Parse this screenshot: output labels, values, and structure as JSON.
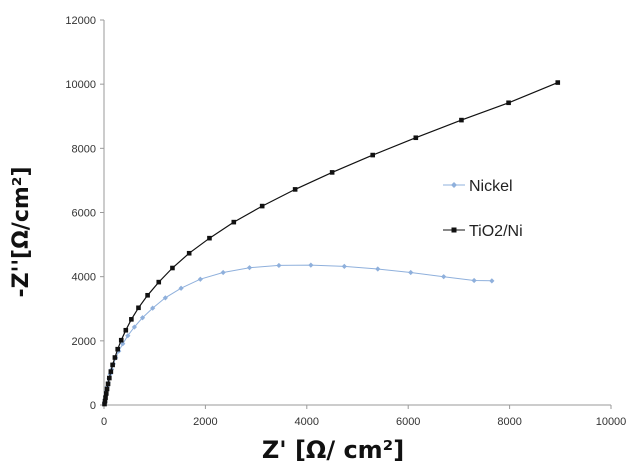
{
  "chart_data": {
    "type": "scatter",
    "title": "",
    "xlabel": "Z' [Ω/ cm²]",
    "ylabel": "-Z''[Ω/cm²]",
    "xlim": [
      0,
      10000
    ],
    "ylim": [
      0,
      12000
    ],
    "x_ticks": [
      0,
      2000,
      4000,
      6000,
      8000,
      10000
    ],
    "y_ticks": [
      0,
      2000,
      4000,
      6000,
      8000,
      10000,
      12000
    ],
    "grid": false,
    "legend_position": "right",
    "series": [
      {
        "name": "Nickel",
        "color": "#8fb0dc",
        "marker": "diamond",
        "points": [
          [
            10,
            40
          ],
          [
            15,
            100
          ],
          [
            22,
            180
          ],
          [
            30,
            270
          ],
          [
            40,
            360
          ],
          [
            52,
            460
          ],
          [
            66,
            570
          ],
          [
            82,
            690
          ],
          [
            100,
            820
          ],
          [
            122,
            960
          ],
          [
            150,
            1110
          ],
          [
            185,
            1280
          ],
          [
            230,
            1470
          ],
          [
            290,
            1680
          ],
          [
            370,
            1910
          ],
          [
            470,
            2160
          ],
          [
            600,
            2430
          ],
          [
            760,
            2720
          ],
          [
            960,
            3020
          ],
          [
            1210,
            3340
          ],
          [
            1520,
            3640
          ],
          [
            1900,
            3920
          ],
          [
            2350,
            4130
          ],
          [
            2870,
            4280
          ],
          [
            3450,
            4350
          ],
          [
            4080,
            4360
          ],
          [
            4740,
            4320
          ],
          [
            5400,
            4240
          ],
          [
            6050,
            4130
          ],
          [
            6700,
            4000
          ],
          [
            7300,
            3880
          ],
          [
            7650,
            3870
          ]
        ]
      },
      {
        "name": "TiO2/Ni",
        "color": "#111111",
        "marker": "square",
        "points": [
          [
            10,
            30
          ],
          [
            20,
            120
          ],
          [
            30,
            230
          ],
          [
            45,
            360
          ],
          [
            60,
            500
          ],
          [
            80,
            660
          ],
          [
            105,
            840
          ],
          [
            135,
            1040
          ],
          [
            170,
            1250
          ],
          [
            215,
            1480
          ],
          [
            270,
            1740
          ],
          [
            340,
            2020
          ],
          [
            430,
            2330
          ],
          [
            540,
            2670
          ],
          [
            680,
            3030
          ],
          [
            860,
            3420
          ],
          [
            1080,
            3830
          ],
          [
            1350,
            4270
          ],
          [
            1680,
            4730
          ],
          [
            2080,
            5200
          ],
          [
            2560,
            5700
          ],
          [
            3120,
            6200
          ],
          [
            3770,
            6720
          ],
          [
            4500,
            7250
          ],
          [
            5300,
            7790
          ],
          [
            6150,
            8330
          ],
          [
            7050,
            8880
          ],
          [
            7980,
            9420
          ],
          [
            8950,
            10050
          ]
        ]
      }
    ]
  }
}
